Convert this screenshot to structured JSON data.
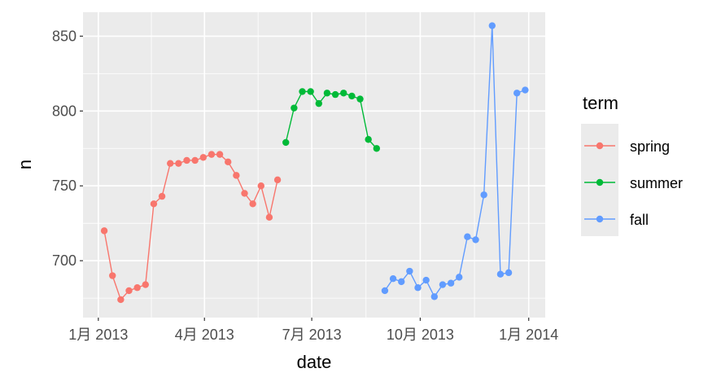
{
  "chart_data": {
    "type": "line",
    "xlabel": "date",
    "ylabel": "n",
    "ylim": [
      662,
      866
    ],
    "xlim": [
      "2012-12-19",
      "2014-01-15"
    ],
    "yticks": [
      700,
      750,
      800,
      850
    ],
    "xticks": [
      {
        "date": "2013-01-01",
        "label": "1月 2013"
      },
      {
        "date": "2013-04-01",
        "label": "4月 2013"
      },
      {
        "date": "2013-07-01",
        "label": "7月 2013"
      },
      {
        "date": "2013-10-01",
        "label": "10月 2013"
      },
      {
        "date": "2014-01-01",
        "label": "1月 2014"
      }
    ],
    "grid": true,
    "legend": {
      "title": "term",
      "placement": "right"
    },
    "series": [
      {
        "name": "spring",
        "color": "#F8766D",
        "start": "2013-01-06",
        "values": [
          720,
          690,
          674,
          680,
          682,
          684,
          738,
          743,
          765,
          765,
          767,
          767,
          769,
          771,
          771,
          766,
          757,
          745,
          738,
          750,
          729,
          754
        ]
      },
      {
        "name": "summer",
        "color": "#00BA38",
        "start": "2013-06-09",
        "values": [
          779,
          802,
          813,
          813,
          805,
          812,
          811,
          812,
          810,
          808,
          781,
          775
        ]
      },
      {
        "name": "fall",
        "color": "#619CFF",
        "start": "2013-09-01",
        "values": [
          680,
          688,
          686,
          693,
          682,
          687,
          676,
          684,
          685,
          689,
          716,
          714,
          744,
          857,
          691,
          692,
          812,
          814
        ]
      }
    ]
  }
}
